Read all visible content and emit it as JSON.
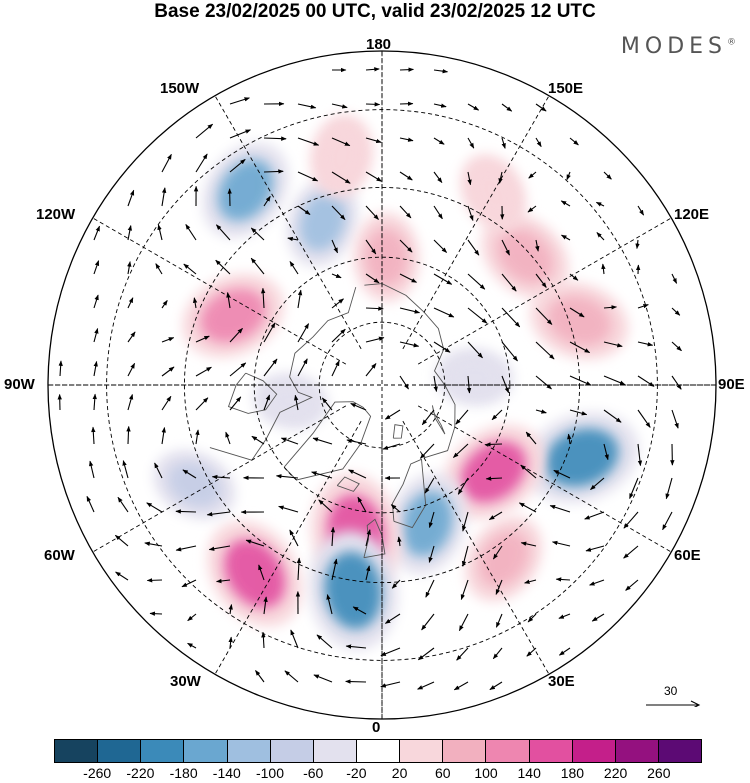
{
  "title": "Base 23/02/2025 00 UTC, valid 23/02/2025 12 UTC",
  "brand": "MODES",
  "brand_mark": "®",
  "longitude_labels": {
    "top": "180",
    "bottom": "0",
    "left": "90W",
    "right": "90E",
    "upper_left": "150W",
    "upper_right": "150E",
    "mid_upper_left": "120W",
    "mid_upper_right": "120E",
    "mid_lower_left": "60W",
    "mid_lower_right": "60E",
    "lower_left": "30W",
    "lower_right": "30E"
  },
  "reference_vector": {
    "label": "30"
  },
  "colorbar": {
    "ticks": [
      "-260",
      "-220",
      "-180",
      "-140",
      "-100",
      "-60",
      "-20",
      "20",
      "60",
      "100",
      "140",
      "180",
      "220",
      "260"
    ],
    "colors": [
      "#16435f",
      "#1f6793",
      "#3b8ab9",
      "#6aa7d0",
      "#9fbfe0",
      "#c5cde6",
      "#e3e1ee",
      "#ffffff",
      "#f8d7dc",
      "#f2b0bf",
      "#ee86b0",
      "#e250a0",
      "#c41f8a",
      "#94117f",
      "#5c0a74"
    ]
  },
  "anomaly_centers": [
    {
      "lon_deg": 70,
      "lat_deg": 42,
      "value": -190,
      "color": "#3b8ab9"
    },
    {
      "lon_deg": 132,
      "lat_deg": 46,
      "value": 120,
      "color": "#f2b0bf"
    },
    {
      "lon_deg": 108,
      "lat_deg": 43,
      "value": 130,
      "color": "#f2b0bf"
    },
    {
      "lon_deg": 52,
      "lat_deg": 57,
      "value": 170,
      "color": "#e250a0"
    },
    {
      "lon_deg": 18,
      "lat_deg": 56,
      "value": -140,
      "color": "#6aa7d0"
    },
    {
      "lon_deg": -10,
      "lat_deg": 55,
      "value": 200,
      "color": "#e250a0"
    },
    {
      "lon_deg": -8,
      "lat_deg": 43,
      "value": -200,
      "color": "#3b8ab9"
    },
    {
      "lon_deg": -34,
      "lat_deg": 39,
      "value": 180,
      "color": "#e250a0"
    },
    {
      "lon_deg": -62,
      "lat_deg": 42,
      "value": -80,
      "color": "#c5cde6"
    },
    {
      "lon_deg": -115,
      "lat_deg": 52,
      "value": 150,
      "color": "#ee86b0"
    },
    {
      "lon_deg": -160,
      "lat_deg": 50,
      "value": -100,
      "color": "#9fbfe0"
    },
    {
      "lon_deg": 178,
      "lat_deg": 60,
      "value": 90,
      "color": "#f2b0bf"
    },
    {
      "lon_deg": -145,
      "lat_deg": 37,
      "value": -140,
      "color": "#6aa7d0"
    },
    {
      "lon_deg": -170,
      "lat_deg": 38,
      "value": 70,
      "color": "#f8d7dc"
    },
    {
      "lon_deg": 150,
      "lat_deg": 40,
      "value": 60,
      "color": "#f8d7dc"
    },
    {
      "lon_deg": -80,
      "lat_deg": 68,
      "value": -40,
      "color": "#e3e1ee"
    },
    {
      "lon_deg": 95,
      "lat_deg": 68,
      "value": -50,
      "color": "#e3e1ee"
    },
    {
      "lon_deg": 35,
      "lat_deg": 42,
      "value": 100,
      "color": "#f2b0bf"
    }
  ]
}
